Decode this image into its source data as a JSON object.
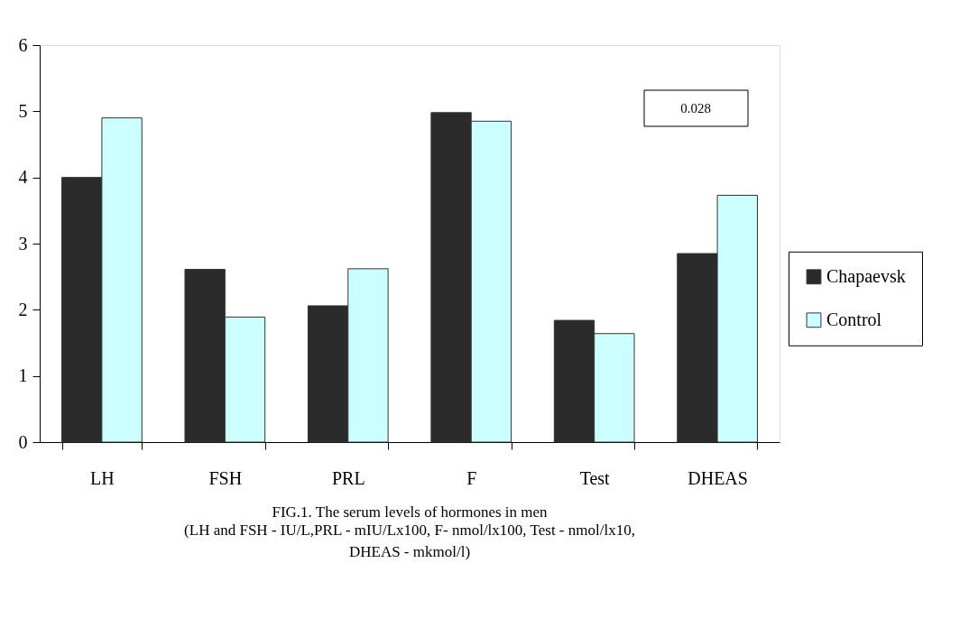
{
  "chart_data": {
    "type": "bar",
    "title": "FIG.1. The serum levels of hormones in men",
    "subtitle": "(LH and FSH - IU/L,PRL - mIU/Lx100, F- nmol/lx100, Test - nmol/lx10,\nDHEAS - mkmol/l)",
    "categories": [
      "LH",
      "FSH",
      "PRL",
      "F",
      "Test",
      "DHEAS"
    ],
    "series": [
      {
        "name": "Chapaevsk",
        "color": "#2b2b2b",
        "values": [
          4.0,
          2.61,
          2.06,
          4.98,
          1.84,
          2.85
        ]
      },
      {
        "name": "Control",
        "color": "#ccffff",
        "values": [
          4.9,
          1.89,
          2.62,
          4.85,
          1.64,
          3.73
        ]
      }
    ],
    "ylim": [
      0,
      6
    ],
    "yticks": [
      0,
      1,
      2,
      3,
      4,
      5,
      6
    ],
    "annotations": [
      "0.028"
    ],
    "grid": false,
    "legend": "right"
  }
}
